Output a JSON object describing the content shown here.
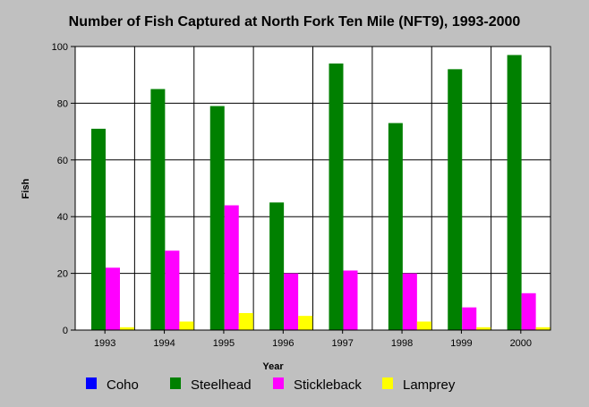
{
  "chart_data": {
    "type": "bar",
    "title": "Number of Fish Captured at North Fork Ten Mile (NFT9), 1993-2000",
    "xlabel": "Year",
    "ylabel": "Fish",
    "categories": [
      "1993",
      "1994",
      "1995",
      "1996",
      "1997",
      "1998",
      "1999",
      "2000"
    ],
    "ylim": [
      0,
      100
    ],
    "yticks": [
      0,
      20,
      40,
      60,
      80,
      100
    ],
    "grid": true,
    "legend_position": "bottom",
    "series": [
      {
        "name": "Coho",
        "color": "#0000ff",
        "values": [
          0,
          0,
          0,
          0,
          0,
          0,
          0,
          0
        ]
      },
      {
        "name": "Steelhead",
        "color": "#008000",
        "values": [
          71,
          85,
          79,
          45,
          94,
          73,
          92,
          97
        ]
      },
      {
        "name": "Stickleback",
        "color": "#ff00ff",
        "values": [
          22,
          28,
          44,
          20,
          21,
          20,
          8,
          13
        ]
      },
      {
        "name": "Lamprey",
        "color": "#ffff00",
        "values": [
          1,
          3,
          6,
          5,
          0,
          3,
          1,
          1
        ]
      }
    ]
  }
}
